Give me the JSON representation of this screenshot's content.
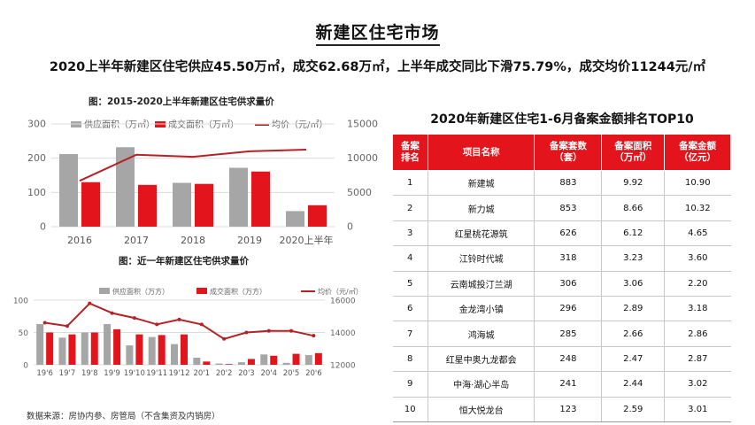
{
  "page": {
    "title": "新建区住宅市场",
    "headline": "2020上半年新建区住宅供应45.50万㎡，成交62.68万㎡，上半年成交同比下滑75.79%，成交均价11244元/㎡",
    "footer_note": "数据来源：房协内参、房管局（不含集资及内销房）"
  },
  "colors": {
    "supply": "#a6a6a6",
    "deal": "#e3141c",
    "price": "#b52226",
    "header_red": "#e3141c"
  },
  "chart_data": [
    {
      "type": "bar",
      "title": "图：2015-2020上半年新建区住宅供求量价",
      "categories": [
        "2016",
        "2017",
        "2018",
        "2019",
        "2020上半年"
      ],
      "series": [
        {
          "name": "供应面积（万㎡）",
          "kind": "bar",
          "axis": "left",
          "values": [
            212,
            232,
            128,
            172,
            45.5
          ]
        },
        {
          "name": "成交面积（万㎡）",
          "kind": "bar",
          "axis": "left",
          "values": [
            130,
            122,
            125,
            161,
            62.68
          ]
        },
        {
          "name": "均价（元/㎡）",
          "kind": "line",
          "axis": "right",
          "values": [
            6700,
            10500,
            10200,
            11000,
            11244
          ]
        }
      ],
      "y_left": {
        "min": 0,
        "max": 300,
        "ticks": [
          0,
          100,
          200,
          300
        ]
      },
      "y_right": {
        "min": 0,
        "max": 15000,
        "ticks": [
          0,
          5000,
          10000,
          15000
        ]
      },
      "legend_position": "top",
      "grid": true
    },
    {
      "type": "bar",
      "title": "图：近一年新建区住宅供求量价",
      "categories": [
        "19'6",
        "19'7",
        "19'8",
        "19'9",
        "19'10",
        "19'11",
        "19'12",
        "20'1",
        "20'2",
        "20'3",
        "20'4",
        "20'5",
        "20'6"
      ],
      "series": [
        {
          "name": "供应面积（万方）",
          "kind": "bar",
          "axis": "left",
          "values": [
            63,
            42,
            50,
            63,
            30,
            43,
            32,
            11,
            2,
            4,
            16,
            3,
            15
          ]
        },
        {
          "name": "成交面积（万方）",
          "kind": "bar",
          "axis": "left",
          "values": [
            50,
            47,
            50,
            55,
            47,
            46,
            47,
            5,
            1,
            9,
            14,
            17,
            18
          ]
        },
        {
          "name": "均价（元/㎡）",
          "kind": "line",
          "axis": "right",
          "values": [
            14600,
            14400,
            15800,
            15200,
            14900,
            14500,
            14800,
            14500,
            13600,
            14000,
            14100,
            14100,
            13800
          ]
        }
      ],
      "y_left": {
        "min": 0,
        "max": 100,
        "ticks": [
          0,
          50,
          100
        ]
      },
      "y_right": {
        "min": 12000,
        "max": 16000,
        "ticks": [
          12000,
          14000,
          16000
        ]
      },
      "legend_position": "top",
      "grid": true
    }
  ],
  "table": {
    "title": "2020年新建区住宅1-6月备案金额排名TOP10",
    "headers": [
      "备案\n排名",
      "项目名称",
      "备案套数\n（套）",
      "备案面积\n（万㎡）",
      "备案金额\n（亿元）"
    ],
    "rows": [
      [
        "1",
        "新建城",
        "883",
        "9.92",
        "10.90"
      ],
      [
        "2",
        "新力城",
        "853",
        "8.66",
        "10.32"
      ],
      [
        "3",
        "红星桃花源筑",
        "626",
        "6.12",
        "4.65"
      ],
      [
        "4",
        "江铃时代城",
        "318",
        "3.23",
        "3.60"
      ],
      [
        "5",
        "云南城投汀兰湖",
        "306",
        "3.06",
        "2.20"
      ],
      [
        "6",
        "金龙湾小镇",
        "296",
        "2.89",
        "3.18"
      ],
      [
        "7",
        "鸿海城",
        "285",
        "2.66",
        "2.86"
      ],
      [
        "8",
        "红星中奥九龙都会",
        "248",
        "2.47",
        "2.87"
      ],
      [
        "9",
        "中海·湖心半岛",
        "241",
        "2.44",
        "3.02"
      ],
      [
        "10",
        "恒大悦龙台",
        "123",
        "2.59",
        "3.01"
      ]
    ]
  }
}
